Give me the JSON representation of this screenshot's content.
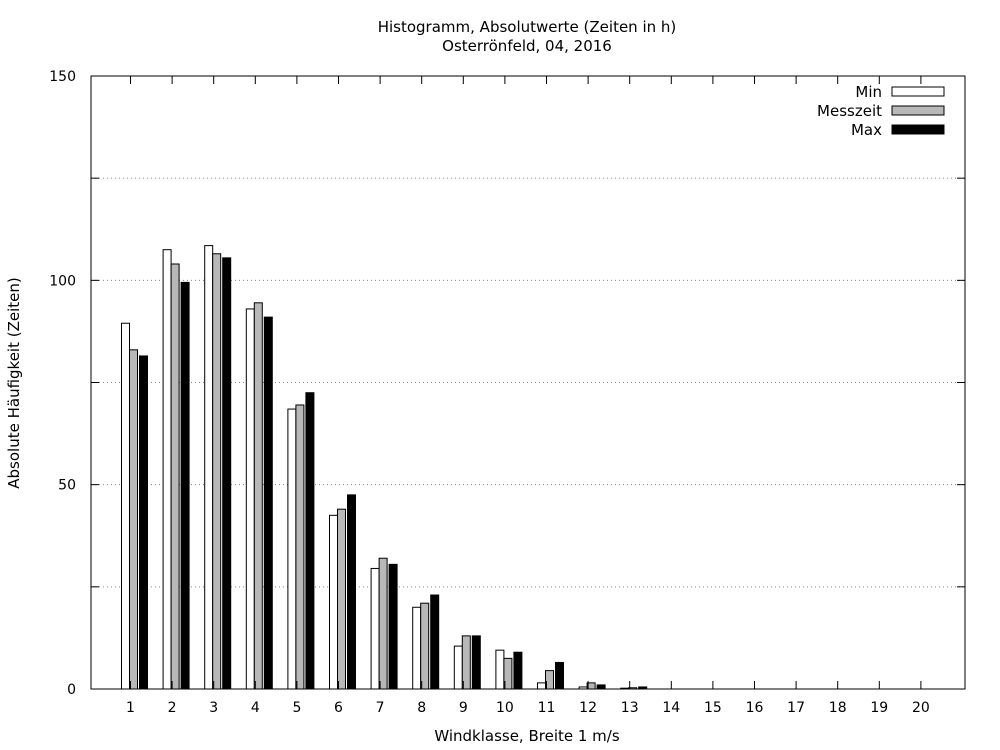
{
  "chart_data": {
    "type": "bar",
    "title": "Histogramm, Absolutwerte (Zeiten in h)",
    "subtitle": "Osterrönfeld, 04, 2016",
    "xlabel": "Windklasse, Breite 1 m/s",
    "ylabel": "Absolute Häufigkeit (Zeiten)",
    "ylim": [
      0,
      150
    ],
    "y_ticks_labeled": [
      "0",
      "50",
      "100",
      "150"
    ],
    "y_grid_values": [
      25,
      50,
      75,
      100,
      125
    ],
    "grid": true,
    "legend_position": "top-right",
    "categories": [
      "1",
      "2",
      "3",
      "4",
      "5",
      "6",
      "7",
      "8",
      "9",
      "10",
      "11",
      "12",
      "13",
      "14",
      "15",
      "16",
      "17",
      "18",
      "19",
      "20"
    ],
    "series": [
      {
        "name": "Min",
        "color": "#ffffff",
        "values": [
          89.5,
          107.5,
          108.5,
          93,
          68.5,
          42.5,
          29.5,
          20,
          10.5,
          9.5,
          1.5,
          0.5,
          0.2,
          0,
          0,
          0,
          0,
          0,
          0,
          0
        ]
      },
      {
        "name": "Messzeit",
        "color": "#b8b8b8",
        "values": [
          83,
          104,
          106.5,
          94.5,
          69.5,
          44,
          32,
          21,
          13,
          7.5,
          4.5,
          1.5,
          0.3,
          0,
          0,
          0,
          0,
          0,
          0,
          0
        ]
      },
      {
        "name": "Max",
        "color": "#000000",
        "values": [
          81.5,
          99.5,
          105.5,
          91,
          72.5,
          47.5,
          30.5,
          23,
          13,
          9,
          6.5,
          1,
          0.5,
          0,
          0,
          0,
          0,
          0,
          0,
          0
        ]
      }
    ]
  }
}
